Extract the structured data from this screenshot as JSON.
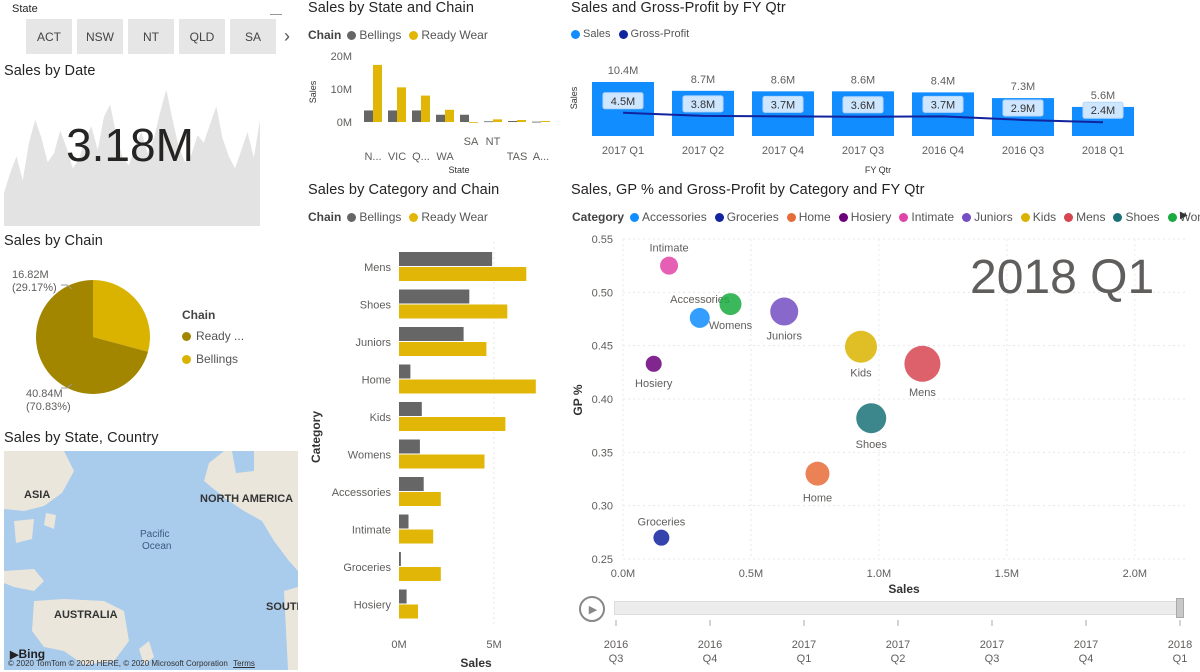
{
  "colors": {
    "accent_blue": "#118dff",
    "dark_navy": "#12239e",
    "bellings": "#666666",
    "ready_wear": "#e1b606",
    "pie_ready": "#a38600",
    "pie_bellings": "#d9b300"
  },
  "state_slicer": {
    "title": "State",
    "buttons": [
      "ACT",
      "NSW",
      "NT",
      "QLD",
      "SA"
    ],
    "next_icon": "chevron-right-icon"
  },
  "sales_by_date": {
    "title": "Sales by Date",
    "value": "3.18M"
  },
  "sales_by_chain": {
    "title": "Sales by Chain",
    "legend_title": "Chain",
    "legend": [
      "Ready ...",
      "Bellings"
    ],
    "label_small_value": "16.82M",
    "label_small_pct": "(29.17%)",
    "label_large_value": "40.84M",
    "label_large_pct": "(70.83%)"
  },
  "map": {
    "title": "Sales by State, Country",
    "labels": {
      "asia": "ASIA",
      "north_america": "NORTH AMERICA",
      "pacific1": "Pacific",
      "pacific2": "Ocean",
      "australia": "AUSTRALIA",
      "south": "SOUTH"
    },
    "bing": "Bing",
    "copyright": "© 2020 TomTom © 2020 HERE, © 2020 Microsoft Corporation",
    "terms": "Terms"
  },
  "state_chain_chart": {
    "title": "Sales by State and Chain",
    "legend_title": "Chain",
    "legend": [
      "Bellings",
      "Ready Wear"
    ],
    "ylabel": "Sales",
    "xlabel": "State",
    "yticks": [
      "20M",
      "10M",
      "0M"
    ]
  },
  "category_chain_chart": {
    "title": "Sales by Category and Chain",
    "legend_title": "Chain",
    "legend": [
      "Bellings",
      "Ready Wear"
    ],
    "ylabel": "Category",
    "xlabel": "Sales",
    "xticks": [
      "0M",
      "5M"
    ]
  },
  "gross_profit_chart": {
    "title": "Sales and Gross-Profit by FY Qtr",
    "legend": [
      "Sales",
      "Gross-Profit"
    ],
    "ylabel": "Sales",
    "xlabel": "FY Qtr"
  },
  "scatter_chart": {
    "title": "Sales, GP % and Gross-Profit by Category and FY Qtr",
    "legend_title": "Category",
    "play_axis_label": "2018 Q1",
    "xlabel": "Sales",
    "ylabel": "GP %",
    "yticks": [
      "0.55",
      "0.50",
      "0.45",
      "0.40",
      "0.35",
      "0.30",
      "0.25"
    ],
    "xticks": [
      "0.0M",
      "0.5M",
      "1.0M",
      "1.5M",
      "2.0M"
    ],
    "timeline": [
      [
        "2016",
        "Q3"
      ],
      [
        "2016",
        "Q4"
      ],
      [
        "2017",
        "Q1"
      ],
      [
        "2017",
        "Q2"
      ],
      [
        "2017",
        "Q3"
      ],
      [
        "2017",
        "Q4"
      ],
      [
        "2018",
        "Q1"
      ]
    ]
  },
  "chart_data": [
    {
      "type": "area",
      "title": "Sales by Date",
      "values": [
        22,
        35,
        46,
        30,
        55,
        70,
        58,
        42,
        48,
        63,
        52,
        38,
        44,
        57,
        66,
        50,
        72,
        80,
        60,
        45,
        40,
        53,
        62,
        48,
        58,
        75,
        90,
        70,
        52,
        42,
        47,
        60,
        55,
        67,
        79,
        58,
        46,
        38,
        50,
        62,
        45,
        70
      ]
    },
    {
      "type": "pie",
      "title": "Sales by Chain",
      "slices": [
        {
          "name": "Bellings",
          "value": 16.82,
          "color": "#d9b300"
        },
        {
          "name": "Ready ...",
          "value": 40.84,
          "color": "#a38600"
        }
      ]
    },
    {
      "type": "bar",
      "title": "Sales by State and Chain",
      "categories": [
        "N...",
        "VIC",
        "Q...",
        "WA",
        "SA",
        "NT",
        "TAS",
        "A..."
      ],
      "ylim": [
        0,
        20
      ],
      "series": [
        {
          "name": "Bellings",
          "values": [
            3.5,
            3.5,
            3.5,
            2.2,
            2.2,
            0.2,
            0.3,
            0.1
          ]
        },
        {
          "name": "Ready Wear",
          "values": [
            17.3,
            10.5,
            8.0,
            3.7,
            0,
            0.8,
            0.6,
            0.3
          ]
        }
      ]
    },
    {
      "type": "bar",
      "title": "Sales by Category and Chain",
      "categories": [
        "Mens",
        "Shoes",
        "Juniors",
        "Home",
        "Kids",
        "Womens",
        "Accessories",
        "Intimate",
        "Groceries",
        "Hosiery"
      ],
      "xlim": [
        0,
        7.5
      ],
      "series": [
        {
          "name": "Bellings",
          "values": [
            4.9,
            3.7,
            3.4,
            0.6,
            1.2,
            1.1,
            1.3,
            0.5,
            0.1,
            0.4
          ]
        },
        {
          "name": "Ready Wear",
          "values": [
            6.7,
            5.7,
            4.6,
            7.2,
            5.6,
            4.5,
            2.2,
            1.8,
            2.2,
            1.0
          ]
        }
      ]
    },
    {
      "type": "bar",
      "title": "Sales and Gross-Profit by FY Qtr",
      "categories": [
        "2017 Q1",
        "2017 Q2",
        "2017 Q4",
        "2017 Q3",
        "2016 Q4",
        "2016 Q3",
        "2018 Q1"
      ],
      "series": [
        {
          "name": "Sales",
          "values": [
            10.4,
            8.7,
            8.6,
            8.6,
            8.4,
            7.3,
            5.6
          ],
          "labels": [
            "10.4M",
            "8.7M",
            "8.6M",
            "8.6M",
            "8.4M",
            "7.3M",
            "5.6M"
          ]
        },
        {
          "name": "Gross-Profit",
          "values": [
            4.5,
            3.8,
            3.7,
            3.6,
            3.7,
            2.9,
            2.4
          ],
          "labels": [
            "4.5M",
            "3.8M",
            "3.7M",
            "3.6M",
            "3.7M",
            "2.9M",
            "2.4M"
          ]
        }
      ]
    },
    {
      "type": "scatter",
      "title": "Sales, GP % and Gross-Profit by Category and FY Qtr",
      "xlim": [
        0,
        2.2
      ],
      "ylim": [
        0.25,
        0.55
      ],
      "series": [
        {
          "name": "Accessories",
          "x": 0.3,
          "y": 0.476,
          "size": 10,
          "color": "#118dff"
        },
        {
          "name": "Groceries",
          "x": 0.15,
          "y": 0.27,
          "size": 8,
          "color": "#12239e"
        },
        {
          "name": "Home",
          "x": 0.76,
          "y": 0.33,
          "size": 12,
          "color": "#e66c37"
        },
        {
          "name": "Hosiery",
          "x": 0.12,
          "y": 0.433,
          "size": 8,
          "color": "#6b007b"
        },
        {
          "name": "Intimate",
          "x": 0.18,
          "y": 0.525,
          "size": 9,
          "color": "#e044a7"
        },
        {
          "name": "Juniors",
          "x": 0.63,
          "y": 0.482,
          "size": 14,
          "color": "#744ec2"
        },
        {
          "name": "Kids",
          "x": 0.93,
          "y": 0.449,
          "size": 16,
          "color": "#d9b300"
        },
        {
          "name": "Mens",
          "x": 1.17,
          "y": 0.433,
          "size": 18,
          "color": "#d64550"
        },
        {
          "name": "Shoes",
          "x": 0.97,
          "y": 0.382,
          "size": 15,
          "color": "#197278"
        },
        {
          "name": "Womens",
          "x": 0.42,
          "y": 0.489,
          "size": 11,
          "color": "#1aab40"
        }
      ]
    }
  ]
}
